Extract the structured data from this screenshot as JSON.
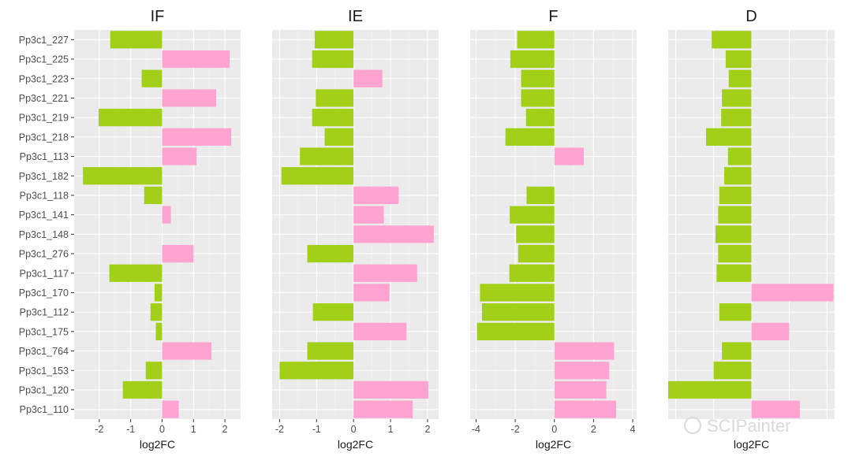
{
  "chart_data": {
    "type": "bar",
    "orientation": "horizontal",
    "categories": [
      "Pp3c1_227",
      "Pp3c1_225",
      "Pp3c1_223",
      "Pp3c1_221",
      "Pp3c1_219",
      "Pp3c1_218",
      "Pp3c1_113",
      "Pp3c1_182",
      "Pp3c1_118",
      "Pp3c1_141",
      "Pp3c1_148",
      "Pp3c1_276",
      "Pp3c1_117",
      "Pp3c1_170",
      "Pp3c1_112",
      "Pp3c1_175",
      "Pp3c1_764",
      "Pp3c1_153",
      "Pp3c1_120",
      "Pp3c1_110"
    ],
    "colors": {
      "negative": "#a2cf17",
      "positive": "#ffa3d1",
      "panel_bg": "#ebebeb",
      "grid_major": "#ffffff",
      "grid_minor": "#f4f4f4"
    },
    "panels": [
      {
        "title": "IF",
        "xlabel": "log2FC",
        "xlim": [
          -2.8,
          2.5
        ],
        "xticks": [
          -2,
          -1,
          0,
          1,
          2
        ],
        "xtick_labels": [
          "-2",
          "-1",
          "0",
          "1",
          "2"
        ],
        "values": [
          -1.65,
          2.15,
          -0.65,
          1.72,
          -2.02,
          2.2,
          1.1,
          -2.52,
          -0.57,
          0.28,
          null,
          1.0,
          -1.68,
          -0.24,
          -0.37,
          -0.2,
          1.57,
          -0.52,
          -1.25,
          0.53
        ]
      },
      {
        "title": "IE",
        "xlabel": "log2FC",
        "xlim": [
          -2.2,
          2.3
        ],
        "xticks": [
          -2,
          -1,
          0,
          1,
          2
        ],
        "xtick_labels": [
          "-2",
          "-1",
          "0",
          "1",
          "2"
        ],
        "values": [
          -1.05,
          -1.12,
          0.78,
          -1.02,
          -1.12,
          -0.78,
          -1.45,
          -1.95,
          1.22,
          0.82,
          2.17,
          -1.25,
          1.72,
          0.97,
          -1.1,
          1.43,
          -1.25,
          -2.0,
          2.02,
          1.6
        ]
      },
      {
        "title": "F",
        "xlabel": "log2FC",
        "xlim": [
          -4.3,
          4.2
        ],
        "xticks": [
          -4,
          -2,
          0,
          2,
          4
        ],
        "xtick_labels": [
          "-4",
          "-2",
          "0",
          "2",
          "4"
        ],
        "values": [
          -1.9,
          -2.25,
          -1.7,
          -1.7,
          -1.45,
          -2.5,
          1.5,
          null,
          -1.42,
          -2.28,
          -1.95,
          -1.85,
          -2.3,
          -3.8,
          -3.7,
          -3.95,
          3.05,
          2.8,
          2.65,
          3.15
        ]
      },
      {
        "title": "D",
        "xlabel": "log2FC",
        "xlim": [
          -2.2,
          2.2
        ],
        "xticks": [],
        "xtick_labels": [],
        "values": [
          -1.05,
          -0.68,
          -0.6,
          -0.78,
          -0.8,
          -1.2,
          -0.62,
          -0.72,
          -0.85,
          -0.88,
          -0.95,
          -0.88,
          -0.92,
          2.17,
          -0.85,
          1.0,
          -0.78,
          -1.0,
          -2.2,
          1.28
        ]
      }
    ]
  },
  "watermark": {
    "text": "SCIPainter"
  }
}
